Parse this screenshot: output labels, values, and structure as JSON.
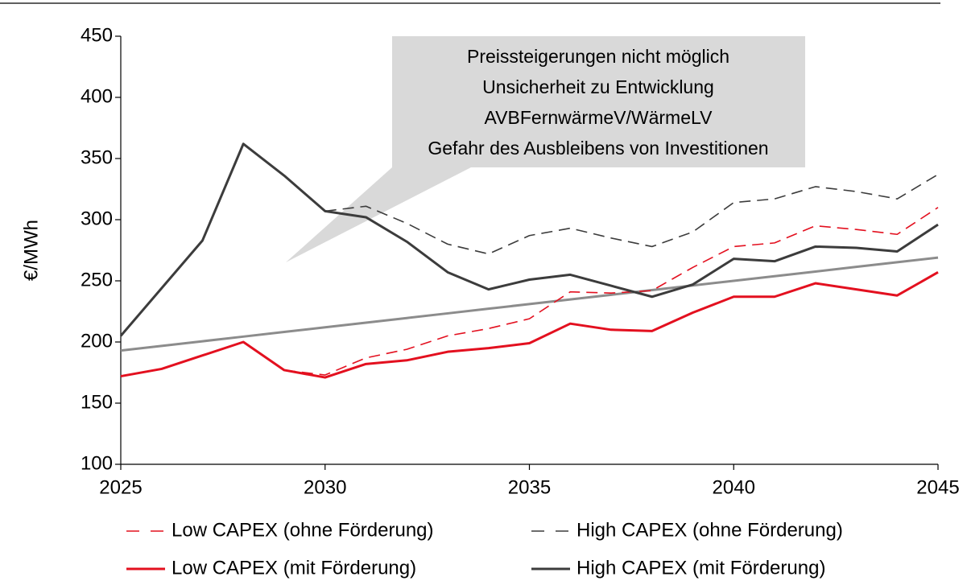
{
  "chart_data": {
    "type": "line",
    "y_label": "€/MWh",
    "annotation": [
      "Preissteigerungen nicht möglich",
      "Unsicherheit zu Entwicklung",
      "AVBFernwärmeV/WärmeLV",
      "Gefahr des Ausbleibens von Investitionen"
    ],
    "x": [
      2025,
      2026,
      2027,
      2028,
      2029,
      2030,
      2031,
      2032,
      2033,
      2034,
      2035,
      2036,
      2037,
      2038,
      2039,
      2040,
      2041,
      2042,
      2043,
      2044,
      2045
    ],
    "xlim": [
      2025,
      2045
    ],
    "xticks": [
      2025,
      2030,
      2035,
      2040,
      2045
    ],
    "ylim": [
      100,
      450
    ],
    "yticks": [
      100,
      150,
      200,
      250,
      300,
      350,
      400,
      450
    ],
    "series": [
      {
        "values": [
          193,
          196.8,
          200.6,
          204.4,
          208.2,
          212,
          215.8,
          219.6,
          223.4,
          227.2,
          231,
          234.8,
          238.6,
          242.4,
          246.2,
          250,
          253.8,
          257.6,
          261.4,
          265.2,
          269
        ],
        "color": "#8c8c8c",
        "dash": false
      },
      {
        "name": "Low CAPEX (ohne Förderung)",
        "color": "#e3101f",
        "dash": true,
        "values": [
          172,
          178,
          189,
          200,
          177,
          173,
          187,
          194,
          205,
          211,
          219,
          241,
          240,
          242,
          261,
          278,
          281,
          295,
          292,
          288,
          310
        ]
      },
      {
        "name": "High CAPEX (ohne Förderung)",
        "color": "#3c3c3c",
        "dash": true,
        "values": [
          205,
          244,
          283,
          362,
          336,
          307,
          311,
          297,
          280,
          272,
          287,
          293,
          285,
          278,
          290,
          314,
          317,
          327,
          323,
          317,
          337
        ]
      },
      {
        "name": "Low CAPEX (mit Förderung)",
        "color": "#e3101f",
        "dash": false,
        "values": [
          172,
          178,
          189,
          200,
          177,
          171,
          182,
          185,
          192,
          195,
          199,
          215,
          210,
          209,
          224,
          237,
          237,
          248,
          243,
          238,
          257
        ]
      },
      {
        "name": "High CAPEX (mit Förderung)",
        "color": "#3c3c3c",
        "dash": false,
        "values": [
          205,
          244,
          283,
          362,
          336,
          307,
          302,
          282,
          257,
          243,
          251,
          255,
          246,
          237,
          247,
          268,
          266,
          278,
          277,
          274,
          296
        ]
      }
    ]
  }
}
